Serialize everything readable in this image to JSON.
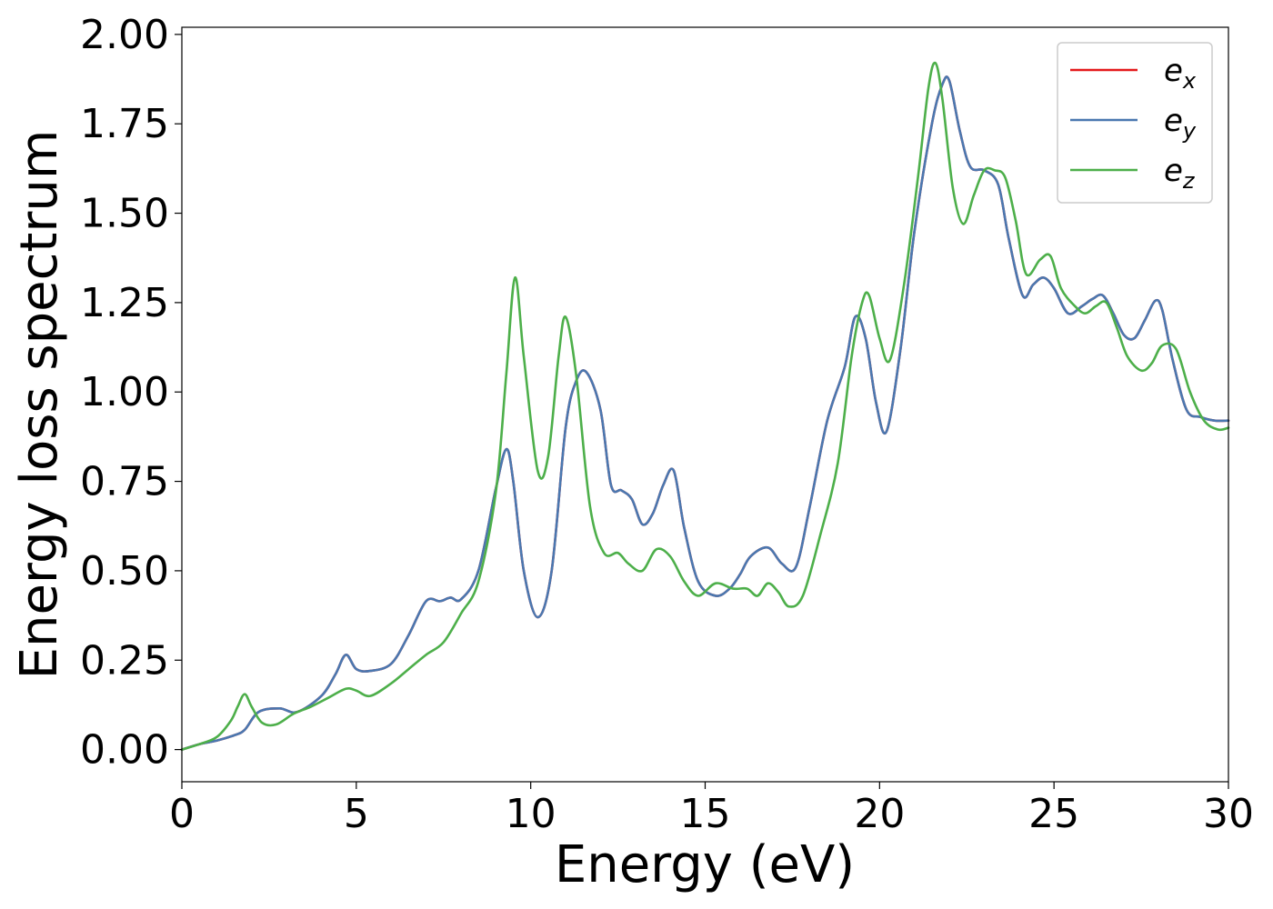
{
  "chart_data": {
    "type": "line",
    "title": "",
    "xlabel": "Energy (eV)",
    "ylabel": "Energy loss spectrum",
    "xlim": [
      0,
      30
    ],
    "ylim": [
      -0.09,
      2.02
    ],
    "xticks": [
      0,
      5,
      10,
      15,
      20,
      25,
      30
    ],
    "xtick_labels": [
      "0",
      "5",
      "10",
      "15",
      "20",
      "25",
      "30"
    ],
    "yticks": [
      0,
      0.25,
      0.5,
      0.75,
      1.0,
      1.25,
      1.5,
      1.75,
      2.0
    ],
    "ytick_labels": [
      "0.00",
      "0.25",
      "0.50",
      "0.75",
      "1.00",
      "1.25",
      "1.50",
      "1.75",
      "2.00"
    ],
    "grid": false,
    "legend_position": "top-right",
    "series": [
      {
        "name": "e_x",
        "legend_base": "e",
        "legend_sub": "x",
        "color": "#e41a1c",
        "x": [
          0,
          0.5,
          1.0,
          1.5,
          1.8,
          2.2,
          2.8,
          3.3,
          4.0,
          4.4,
          4.7,
          5.0,
          5.4,
          6.0,
          6.5,
          7.0,
          7.4,
          7.7,
          8.0,
          8.5,
          9.0,
          9.3,
          9.5,
          9.8,
          10.2,
          10.6,
          11.0,
          11.3,
          11.6,
          12.0,
          12.3,
          12.6,
          12.9,
          13.2,
          13.5,
          13.8,
          14.1,
          14.4,
          14.8,
          15.3,
          15.7,
          16.0,
          16.3,
          16.8,
          17.2,
          17.6,
          18.0,
          18.5,
          19.0,
          19.3,
          19.6,
          19.9,
          20.2,
          20.6,
          21.0,
          21.5,
          21.8,
          22.0,
          22.3,
          22.6,
          23.0,
          23.4,
          23.7,
          24.1,
          24.4,
          24.7,
          25.0,
          25.4,
          25.8,
          26.1,
          26.4,
          26.7,
          27.0,
          27.3,
          27.6,
          27.9,
          28.1,
          28.4,
          28.8,
          29.2,
          29.6,
          30.0
        ],
        "y": [
          0,
          0.015,
          0.025,
          0.04,
          0.055,
          0.105,
          0.115,
          0.105,
          0.15,
          0.21,
          0.265,
          0.225,
          0.22,
          0.24,
          0.32,
          0.415,
          0.415,
          0.425,
          0.42,
          0.5,
          0.73,
          0.84,
          0.75,
          0.5,
          0.37,
          0.5,
          0.9,
          1.03,
          1.055,
          0.95,
          0.74,
          0.725,
          0.7,
          0.63,
          0.66,
          0.74,
          0.78,
          0.62,
          0.47,
          0.43,
          0.45,
          0.49,
          0.54,
          0.565,
          0.52,
          0.51,
          0.68,
          0.92,
          1.07,
          1.21,
          1.15,
          0.97,
          0.89,
          1.12,
          1.45,
          1.75,
          1.86,
          1.87,
          1.73,
          1.63,
          1.62,
          1.58,
          1.43,
          1.27,
          1.3,
          1.32,
          1.29,
          1.22,
          1.24,
          1.26,
          1.27,
          1.22,
          1.16,
          1.15,
          1.2,
          1.255,
          1.23,
          1.09,
          0.95,
          0.93,
          0.92,
          0.92
        ]
      },
      {
        "name": "e_y",
        "legend_base": "e",
        "legend_sub": "y",
        "color": "#4a78b0",
        "x": [
          0,
          0.5,
          1.0,
          1.5,
          1.8,
          2.2,
          2.8,
          3.3,
          4.0,
          4.4,
          4.7,
          5.0,
          5.4,
          6.0,
          6.5,
          7.0,
          7.4,
          7.7,
          8.0,
          8.5,
          9.0,
          9.3,
          9.5,
          9.8,
          10.2,
          10.6,
          11.0,
          11.3,
          11.6,
          12.0,
          12.3,
          12.6,
          12.9,
          13.2,
          13.5,
          13.8,
          14.1,
          14.4,
          14.8,
          15.3,
          15.7,
          16.0,
          16.3,
          16.8,
          17.2,
          17.6,
          18.0,
          18.5,
          19.0,
          19.3,
          19.6,
          19.9,
          20.2,
          20.6,
          21.0,
          21.5,
          21.8,
          22.0,
          22.3,
          22.6,
          23.0,
          23.4,
          23.7,
          24.1,
          24.4,
          24.7,
          25.0,
          25.4,
          25.8,
          26.1,
          26.4,
          26.7,
          27.0,
          27.3,
          27.6,
          27.9,
          28.1,
          28.4,
          28.8,
          29.2,
          29.6,
          30.0
        ],
        "y": [
          0,
          0.015,
          0.025,
          0.04,
          0.055,
          0.105,
          0.115,
          0.105,
          0.15,
          0.21,
          0.265,
          0.225,
          0.22,
          0.24,
          0.32,
          0.415,
          0.415,
          0.425,
          0.42,
          0.5,
          0.73,
          0.84,
          0.75,
          0.5,
          0.37,
          0.5,
          0.9,
          1.03,
          1.055,
          0.95,
          0.74,
          0.725,
          0.7,
          0.63,
          0.66,
          0.74,
          0.78,
          0.62,
          0.47,
          0.43,
          0.45,
          0.49,
          0.54,
          0.565,
          0.52,
          0.51,
          0.68,
          0.92,
          1.07,
          1.21,
          1.15,
          0.97,
          0.89,
          1.12,
          1.45,
          1.75,
          1.86,
          1.87,
          1.73,
          1.63,
          1.62,
          1.58,
          1.43,
          1.27,
          1.3,
          1.32,
          1.29,
          1.22,
          1.24,
          1.26,
          1.27,
          1.22,
          1.16,
          1.15,
          1.2,
          1.255,
          1.23,
          1.09,
          0.95,
          0.93,
          0.92,
          0.92
        ]
      },
      {
        "name": "e_z",
        "legend_base": "e",
        "legend_sub": "z",
        "color": "#4daf4a",
        "x": [
          0,
          0.5,
          1.0,
          1.4,
          1.6,
          1.8,
          2.0,
          2.3,
          2.7,
          3.2,
          3.7,
          4.2,
          4.7,
          5.0,
          5.4,
          6.0,
          6.5,
          7.0,
          7.5,
          8.0,
          8.5,
          9.0,
          9.3,
          9.55,
          9.8,
          10.2,
          10.5,
          10.8,
          11.0,
          11.3,
          11.7,
          12.1,
          12.5,
          12.8,
          13.2,
          13.6,
          14.0,
          14.4,
          14.8,
          15.3,
          15.8,
          16.2,
          16.5,
          16.8,
          17.1,
          17.4,
          17.8,
          18.3,
          18.8,
          19.2,
          19.5,
          19.7,
          20.0,
          20.3,
          20.7,
          21.1,
          21.4,
          21.6,
          21.8,
          22.1,
          22.4,
          22.7,
          23.0,
          23.3,
          23.6,
          23.9,
          24.2,
          24.6,
          24.9,
          25.2,
          25.6,
          25.9,
          26.2,
          26.5,
          26.8,
          27.1,
          27.5,
          27.8,
          28.1,
          28.5,
          28.9,
          29.3,
          29.7,
          30.0
        ],
        "y": [
          0,
          0.015,
          0.035,
          0.08,
          0.12,
          0.155,
          0.12,
          0.075,
          0.07,
          0.1,
          0.12,
          0.145,
          0.17,
          0.165,
          0.15,
          0.185,
          0.225,
          0.265,
          0.3,
          0.38,
          0.47,
          0.72,
          1.05,
          1.32,
          1.1,
          0.78,
          0.82,
          1.1,
          1.21,
          1.05,
          0.68,
          0.55,
          0.55,
          0.52,
          0.5,
          0.56,
          0.54,
          0.47,
          0.43,
          0.465,
          0.45,
          0.45,
          0.43,
          0.465,
          0.44,
          0.4,
          0.43,
          0.6,
          0.8,
          1.1,
          1.25,
          1.27,
          1.15,
          1.09,
          1.3,
          1.6,
          1.85,
          1.92,
          1.82,
          1.57,
          1.47,
          1.55,
          1.62,
          1.62,
          1.6,
          1.48,
          1.33,
          1.37,
          1.38,
          1.29,
          1.24,
          1.22,
          1.24,
          1.25,
          1.18,
          1.1,
          1.06,
          1.08,
          1.13,
          1.12,
          1.0,
          0.92,
          0.895,
          0.9
        ]
      }
    ]
  }
}
